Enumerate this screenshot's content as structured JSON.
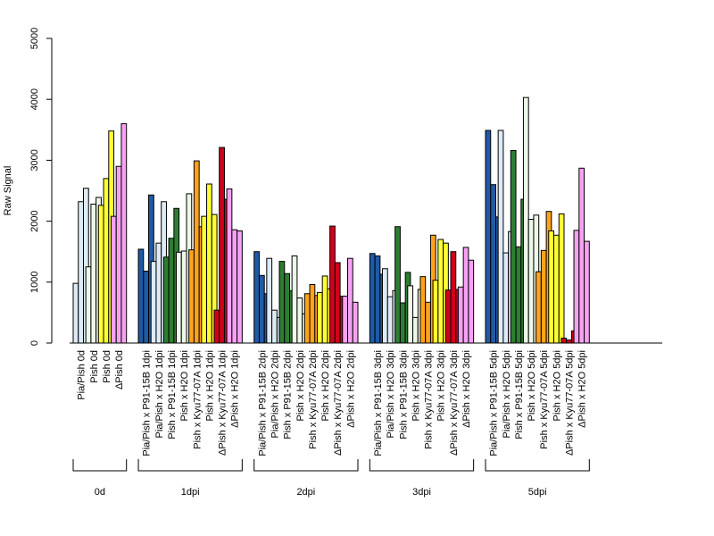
{
  "chart_data": {
    "type": "bar",
    "ylabel": "Raw Signal",
    "ylim": [
      0,
      5000
    ],
    "yticks": [
      0,
      1000,
      2000,
      3000,
      4000,
      5000
    ],
    "groups": [
      {
        "label": "0d",
        "categories": [
          {
            "label": "Pia/Pish 0d",
            "color": "#DEEBF7",
            "values": [
              980,
              2320,
              2540
            ]
          },
          {
            "label": "Pish 0d",
            "color": "#EDF8E9",
            "values": [
              1250,
              2280,
              2390
            ]
          },
          {
            "label": "Pish 0d",
            "color": "#FFFF33",
            "values": [
              2260,
              2700,
              3480
            ]
          },
          {
            "label": "ΔPish 0d",
            "color": "#F7A1F2",
            "values": [
              2080,
              2900,
              3600
            ]
          }
        ]
      },
      {
        "label": "1dpi",
        "categories": [
          {
            "label": "Pia/Pish x P91-15B 1dpi",
            "color": "#1F5AA6",
            "values": [
              1540,
              1180,
              2430
            ]
          },
          {
            "label": "Pia/Pish x H2O 1dpi",
            "color": "#DEEBF7",
            "values": [
              1340,
              1640,
              2320
            ]
          },
          {
            "label": "Pish x P91-15B 1dpi",
            "color": "#2E7D32",
            "values": [
              1410,
              1720,
              2210
            ]
          },
          {
            "label": "Pish x H2O 1dpi",
            "color": "#EDF8E9",
            "values": [
              1490,
              1510,
              2450
            ]
          },
          {
            "label": "Pish x Kyu77-07A 1dpi",
            "color": "#FFA31A",
            "values": [
              1530,
              2990,
              1910
            ]
          },
          {
            "label": "Pish x H2O 1dpi",
            "color": "#FFFF33",
            "values": [
              2080,
              2610,
              2110
            ]
          },
          {
            "label": "ΔPish x Kyu77-07A 1dpi",
            "color": "#D0021B",
            "values": [
              540,
              3210,
              2360
            ]
          },
          {
            "label": "ΔPish x H2O 1dpi",
            "color": "#F7A1F2",
            "values": [
              2530,
              1860,
              1840
            ]
          }
        ]
      },
      {
        "label": "2dpi",
        "categories": [
          {
            "label": "Pia/Pish x P91-15B 2dpi",
            "color": "#1F5AA6",
            "values": [
              1500,
              1110,
              810
            ]
          },
          {
            "label": "Pia/Pish x H2O 2dpi",
            "color": "#DEEBF7",
            "values": [
              1390,
              540,
              420
            ]
          },
          {
            "label": "Pish x P91-15B 2dpi",
            "color": "#2E7D32",
            "values": [
              1340,
              1140,
              860
            ]
          },
          {
            "label": "Pish x H2O 2dpi",
            "color": "#EDF8E9",
            "values": [
              1430,
              740,
              480
            ]
          },
          {
            "label": "Pish x Kyu77-07A 2dpi",
            "color": "#FFA31A",
            "values": [
              810,
              960,
              780
            ]
          },
          {
            "label": "Pish x H2O 2dpi",
            "color": "#FFFF33",
            "values": [
              830,
              1100,
              890
            ]
          },
          {
            "label": "ΔPish x Kyu77-07A 2dpi",
            "color": "#D0021B",
            "values": [
              1920,
              1320,
              770
            ]
          },
          {
            "label": "ΔPish x H2O 2dpi",
            "color": "#F7A1F2",
            "values": [
              770,
              1390,
              670
            ]
          }
        ]
      },
      {
        "label": "3dpi",
        "categories": [
          {
            "label": "Pia/Pish x P91-15B 3dpi",
            "color": "#1F5AA6",
            "values": [
              1470,
              1430,
              1130
            ]
          },
          {
            "label": "Pia/Pish x H2O 3dpi",
            "color": "#DEEBF7",
            "values": [
              1220,
              760,
              860
            ]
          },
          {
            "label": "Pish x P91-15B 3dpi",
            "color": "#2E7D32",
            "values": [
              1910,
              660,
              1160
            ]
          },
          {
            "label": "Pish x H2O 3dpi",
            "color": "#EDF8E9",
            "values": [
              940,
              420,
              880
            ]
          },
          {
            "label": "Pish x Kyu77-07A 3dpi",
            "color": "#FFA31A",
            "values": [
              1090,
              670,
              1770
            ]
          },
          {
            "label": "Pish x H2O 3dpi",
            "color": "#FFFF33",
            "values": [
              1030,
              1700,
              1640
            ]
          },
          {
            "label": "ΔPish x Kyu77-07A 3dpi",
            "color": "#D0021B",
            "values": [
              870,
              1500,
              880
            ]
          },
          {
            "label": "ΔPish x H2O 3dpi",
            "color": "#F7A1F2",
            "values": [
              920,
              1570,
              1360
            ]
          }
        ]
      },
      {
        "label": "5dpi",
        "categories": [
          {
            "label": "Pia/Pish x P91-15B 5dpi",
            "color": "#1F5AA6",
            "values": [
              3490,
              2600,
              2070
            ]
          },
          {
            "label": "Pia/Pish x H2O 5dpi",
            "color": "#DEEBF7",
            "values": [
              3490,
              1480,
              1830
            ]
          },
          {
            "label": "Pish x P91-15B 5dpi",
            "color": "#2E7D32",
            "values": [
              3160,
              1580,
              2360
            ]
          },
          {
            "label": "Pish x H2O 5dpi",
            "color": "#EDF8E9",
            "values": [
              4030,
              2030,
              2100
            ]
          },
          {
            "label": "Pish x Kyu77-07A 5dpi",
            "color": "#FFA31A",
            "values": [
              1170,
              1520,
              2160
            ]
          },
          {
            "label": "Pish x H2O 5dpi",
            "color": "#FFFF33",
            "values": [
              1840,
              1770,
              2120
            ]
          },
          {
            "label": "ΔPish x Kyu77-07A 5dpi",
            "color": "#D0021B",
            "values": [
              80,
              50,
              200
            ]
          },
          {
            "label": "ΔPish x H2O 5dpi",
            "color": "#F7A1F2",
            "values": [
              1850,
              2870,
              1670
            ]
          }
        ]
      }
    ]
  }
}
